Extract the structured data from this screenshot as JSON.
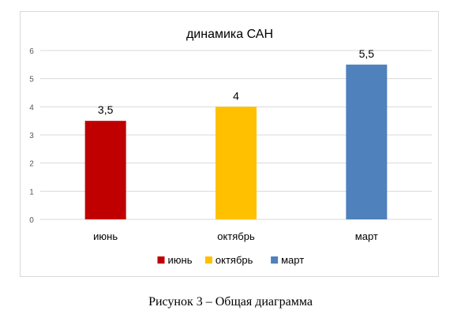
{
  "chart_data": {
    "type": "bar",
    "title": "динамика САН",
    "categories": [
      "июнь",
      "октябрь",
      "март"
    ],
    "values": [
      3.5,
      4,
      5.5
    ],
    "data_labels": [
      "3,5",
      "4",
      "5,5"
    ],
    "colors": [
      "#c00000",
      "#ffc000",
      "#4f81bd"
    ],
    "yticks": [
      "0",
      "1",
      "2",
      "3",
      "4",
      "5",
      "6"
    ],
    "ylim": [
      0,
      6
    ],
    "xlabel": "",
    "ylabel": "",
    "grid": true,
    "legend": {
      "position": "bottom",
      "entries": [
        "июнь",
        "октябрь",
        "март"
      ]
    }
  },
  "caption": "Рисунок 3 – Общая диаграмма"
}
